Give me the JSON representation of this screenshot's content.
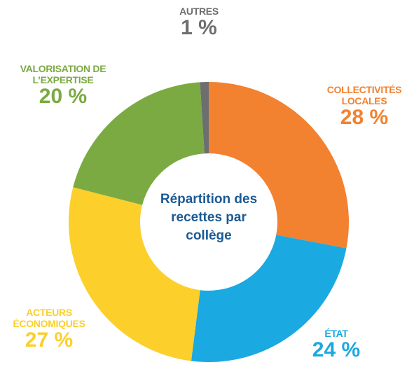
{
  "chart_data": {
    "type": "donut",
    "title": "Répartition des recettes par collège",
    "categories": [
      "COLLECTIVITÉS LOCALES",
      "ÉTAT",
      "ACTEURS ÉCONOMIQUES",
      "VALORISATION DE L’EXPERTISE",
      "AUTRES"
    ],
    "values": [
      28,
      24,
      27,
      20,
      1
    ],
    "value_labels": [
      "28 %",
      "24 %",
      "27 %",
      "20 %",
      "1 %"
    ],
    "colors": [
      "#f28130",
      "#1aa9e1",
      "#fccf2b",
      "#7aaa41",
      "#6d6e70"
    ]
  }
}
